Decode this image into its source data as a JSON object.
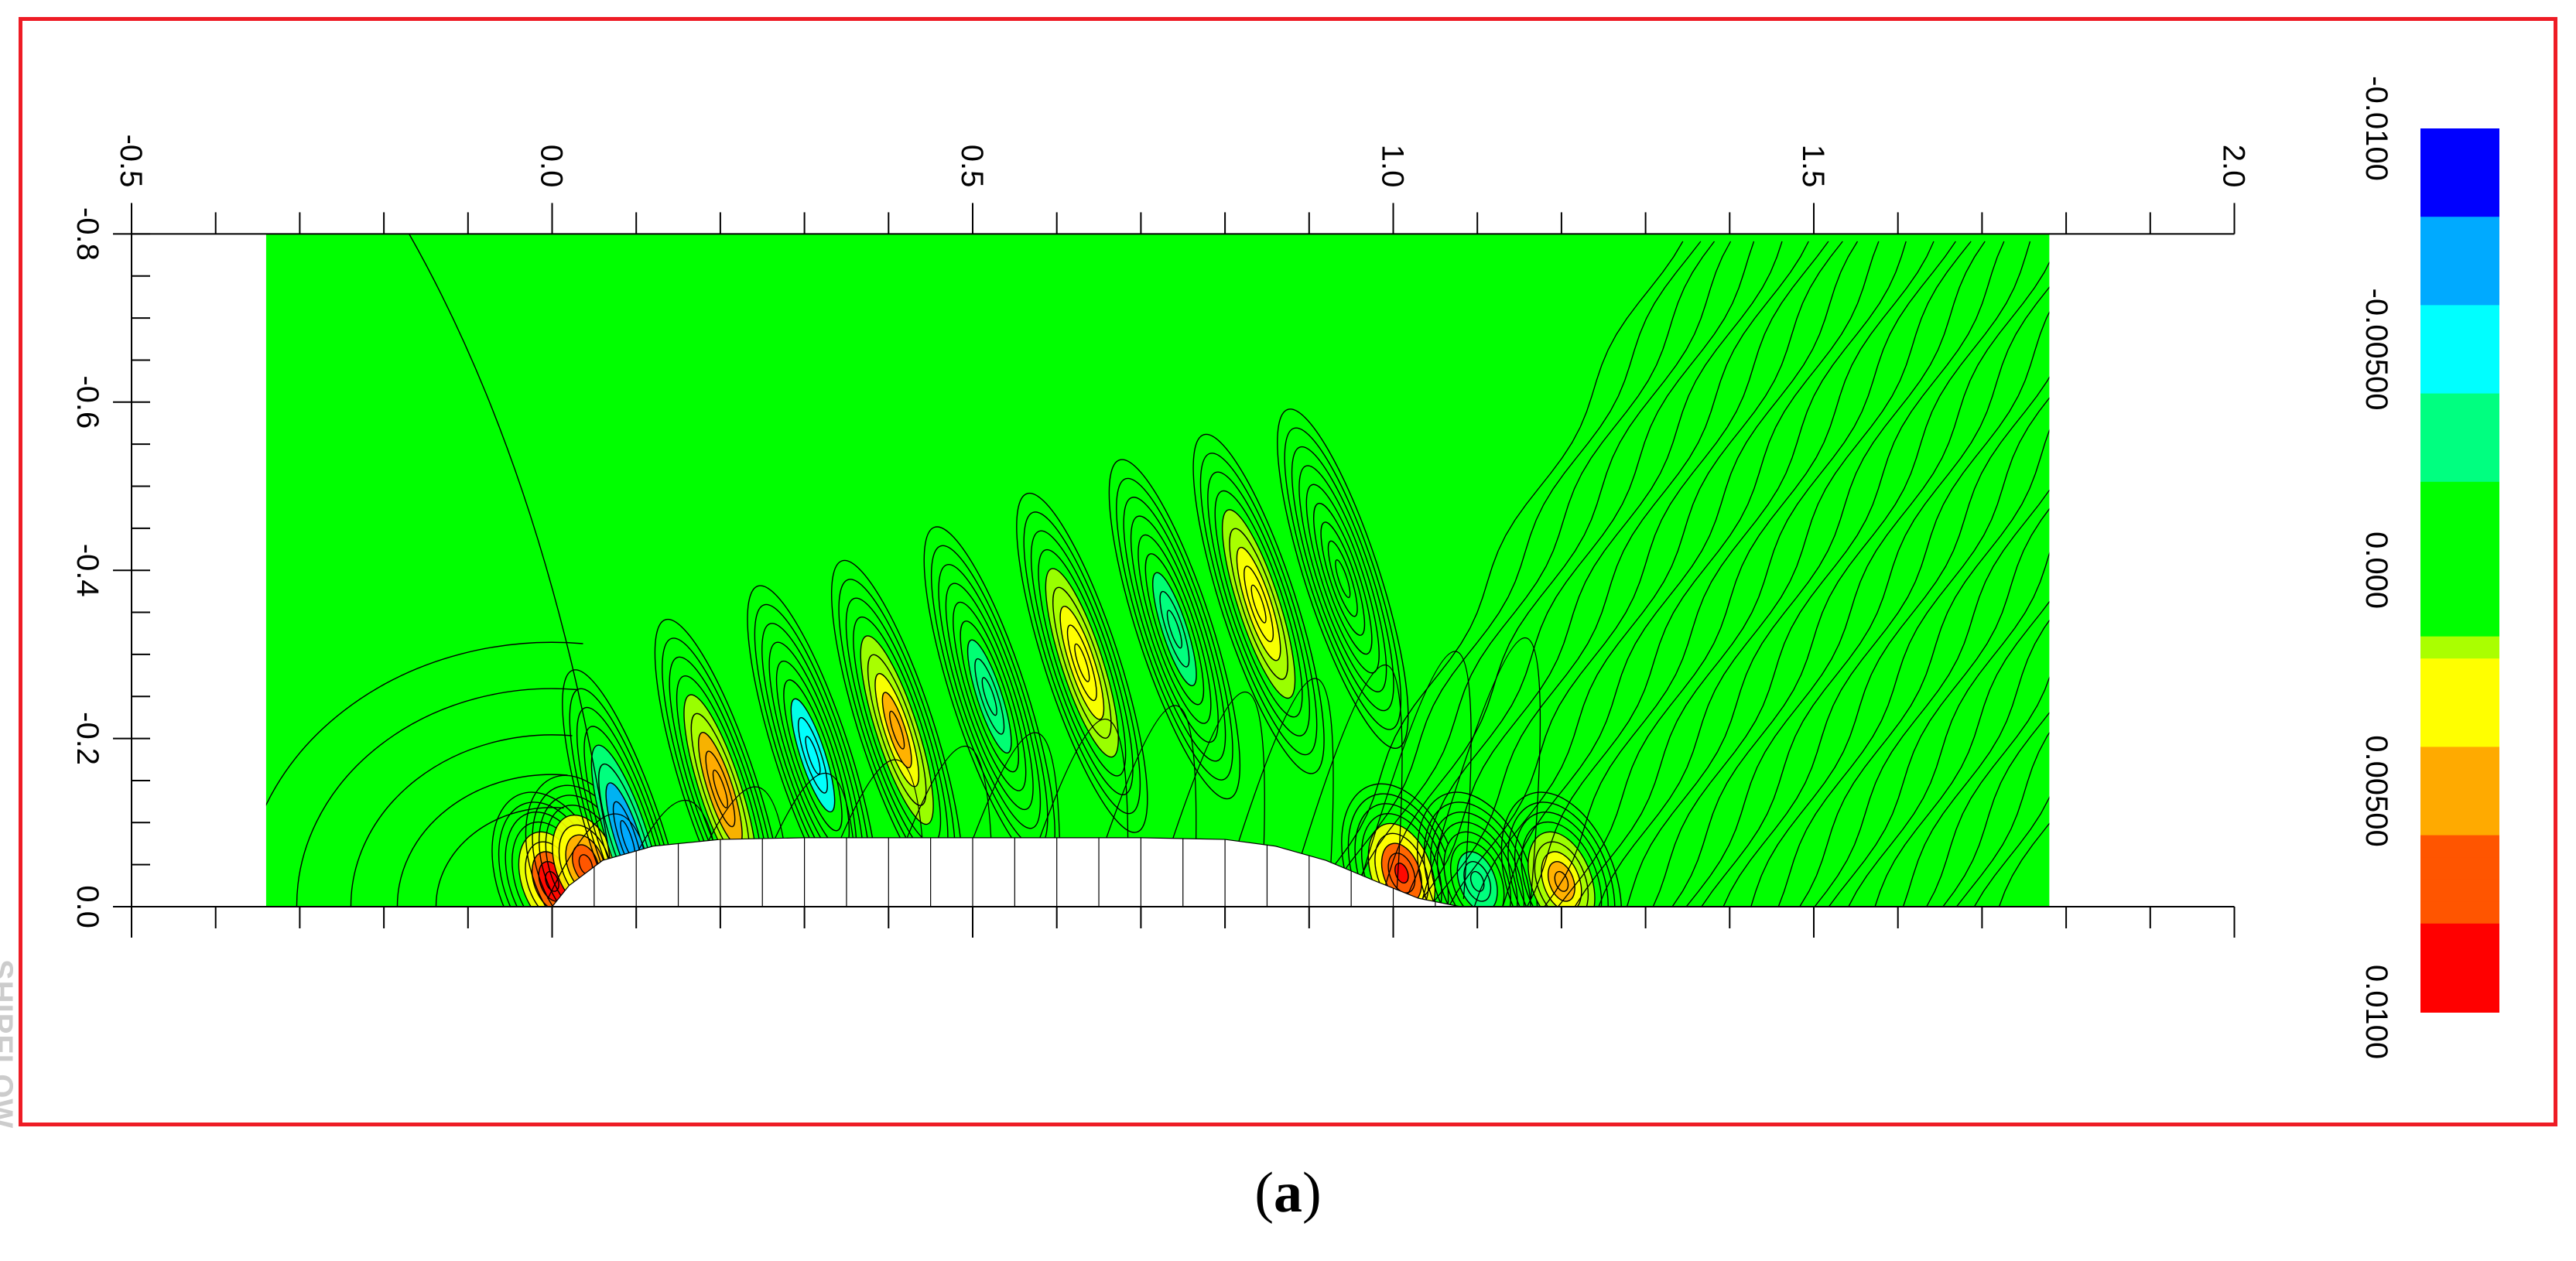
{
  "figure": {
    "caption_open": "(",
    "caption_letter": "a",
    "caption_close": ")",
    "watermark": "SHIPFLOW",
    "frame_color": "#ee1c25"
  },
  "chart_data": {
    "type": "heatmap",
    "title": "",
    "xlabel": "",
    "ylabel": "",
    "x_ticks": [
      "-0.5",
      "0.0",
      "0.5",
      "1.0",
      "1.5",
      "2.0"
    ],
    "x_tick_values": [
      -0.5,
      0.0,
      0.5,
      1.0,
      1.5,
      2.0
    ],
    "y_ticks": [
      "-0.8",
      "-0.6",
      "-0.4",
      "-0.2",
      "0.0"
    ],
    "y_tick_values": [
      -0.8,
      -0.6,
      -0.4,
      -0.2,
      0.0
    ],
    "xlim": [
      -0.5,
      2.0
    ],
    "ylim": [
      -0.8,
      0.0
    ],
    "domain_x": [
      -0.34,
      1.78
    ],
    "domain_y": [
      -0.8,
      0.0
    ],
    "hull": {
      "x": [
        0.0,
        0.02,
        0.06,
        0.12,
        0.2,
        0.3,
        0.5,
        0.7,
        0.8,
        0.86,
        0.92,
        0.98,
        1.03,
        1.08
      ],
      "half_breadth": [
        0.0,
        0.025,
        0.055,
        0.072,
        0.08,
        0.082,
        0.082,
        0.082,
        0.08,
        0.072,
        0.055,
        0.03,
        0.01,
        0.0
      ]
    },
    "colorbar": {
      "labels": [
        "-0.0100",
        "-0.00500",
        "0.000",
        "0.00500",
        "0.0100"
      ],
      "values": [
        -0.01,
        -0.005,
        0.0,
        0.005,
        0.01
      ],
      "colors": [
        "#0000ff",
        "#00aaff",
        "#00ffff",
        "#00ff80",
        "#00ff00",
        "#aaff00",
        "#ffff00",
        "#ffaa00",
        "#ff5500",
        "#ff0000"
      ],
      "background_color": "#00ff00"
    },
    "contour_features": [
      {
        "x": 0.0,
        "y": -0.03,
        "value": 0.01
      },
      {
        "x": 0.04,
        "y": -0.05,
        "value": 0.007
      },
      {
        "x": 0.09,
        "y": -0.08,
        "value": -0.008
      },
      {
        "x": 0.2,
        "y": -0.14,
        "value": 0.006
      },
      {
        "x": 0.31,
        "y": -0.18,
        "value": -0.006
      },
      {
        "x": 0.41,
        "y": -0.21,
        "value": 0.005
      },
      {
        "x": 0.52,
        "y": -0.25,
        "value": -0.004
      },
      {
        "x": 0.63,
        "y": -0.29,
        "value": 0.004
      },
      {
        "x": 0.74,
        "y": -0.33,
        "value": -0.0035
      },
      {
        "x": 0.84,
        "y": -0.36,
        "value": 0.003
      },
      {
        "x": 1.01,
        "y": -0.04,
        "value": 0.009
      },
      {
        "x": 1.1,
        "y": -0.03,
        "value": -0.003
      },
      {
        "x": 1.2,
        "y": -0.03,
        "value": 0.005
      },
      {
        "x": 0.94,
        "y": -0.39,
        "value": -0.002
      }
    ]
  }
}
